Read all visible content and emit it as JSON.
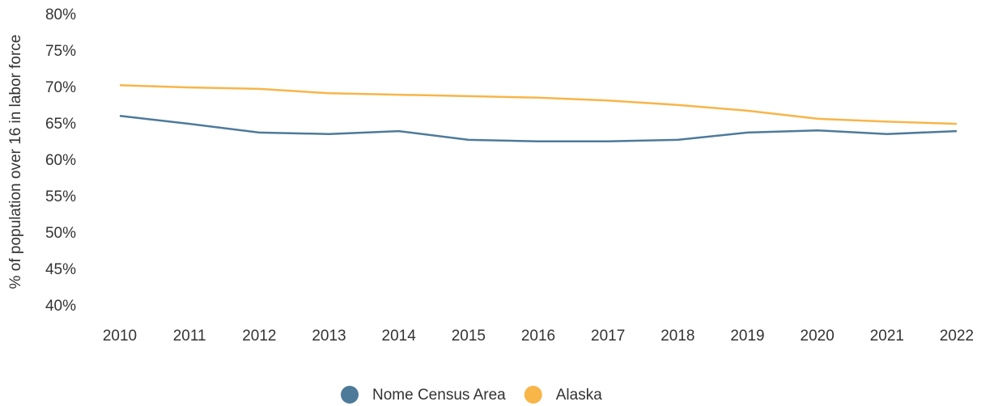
{
  "chart_data": {
    "type": "line",
    "y_label": "% of population over 16 in labor force",
    "categories": [
      "2010",
      "2011",
      "2012",
      "2013",
      "2014",
      "2015",
      "2016",
      "2017",
      "2018",
      "2019",
      "2020",
      "2021",
      "2022"
    ],
    "series": [
      {
        "name": "Nome Census Area",
        "color": "#4e7a99",
        "values": [
          66.2,
          65.1,
          63.9,
          63.7,
          64.1,
          62.9,
          62.7,
          62.7,
          62.9,
          63.9,
          64.2,
          63.7,
          64.1
        ]
      },
      {
        "name": "Alaska",
        "color": "#f8b548",
        "values": [
          70.4,
          70.1,
          69.9,
          69.3,
          69.1,
          68.9,
          68.7,
          68.3,
          67.7,
          66.9,
          65.8,
          65.4,
          65.1
        ]
      }
    ],
    "ylim": [
      40,
      80
    ],
    "yticks": [
      {
        "value": 40,
        "label": "40%"
      },
      {
        "value": 45,
        "label": "45%"
      },
      {
        "value": 50,
        "label": "50%"
      },
      {
        "value": 55,
        "label": "55%"
      },
      {
        "value": 60,
        "label": "60%"
      },
      {
        "value": 65,
        "label": "65%"
      },
      {
        "value": 70,
        "label": "70%"
      },
      {
        "value": 75,
        "label": "75%"
      },
      {
        "value": 80,
        "label": "80%"
      }
    ],
    "grid": false,
    "legend": "bottom"
  }
}
